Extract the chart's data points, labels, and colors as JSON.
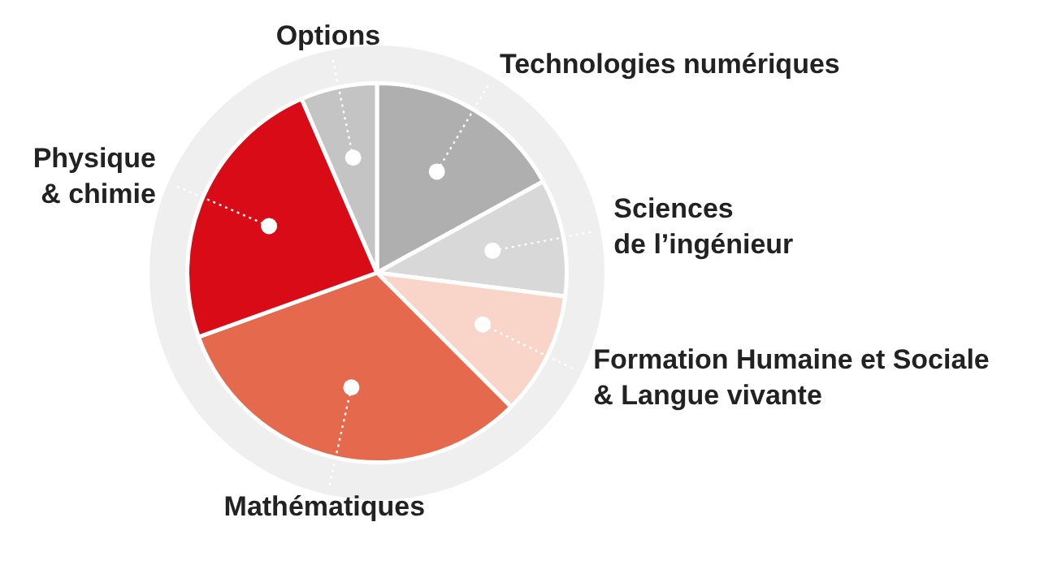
{
  "chart_data": {
    "type": "pie",
    "categories": [
      "Technologies numériques",
      "Sciences\nde l’ingénieur",
      "Formation Humaine et Sociale\n& Langue vivante",
      "Mathématiques",
      "Physique\n& chimie",
      "Options"
    ],
    "values": [
      17,
      10,
      10.5,
      32,
      24,
      6.5
    ],
    "colors": [
      "#b0afaf",
      "#d8d8d8",
      "#f8d5c8",
      "#e5694d",
      "#d90b17",
      "#c4c4c4"
    ]
  }
}
